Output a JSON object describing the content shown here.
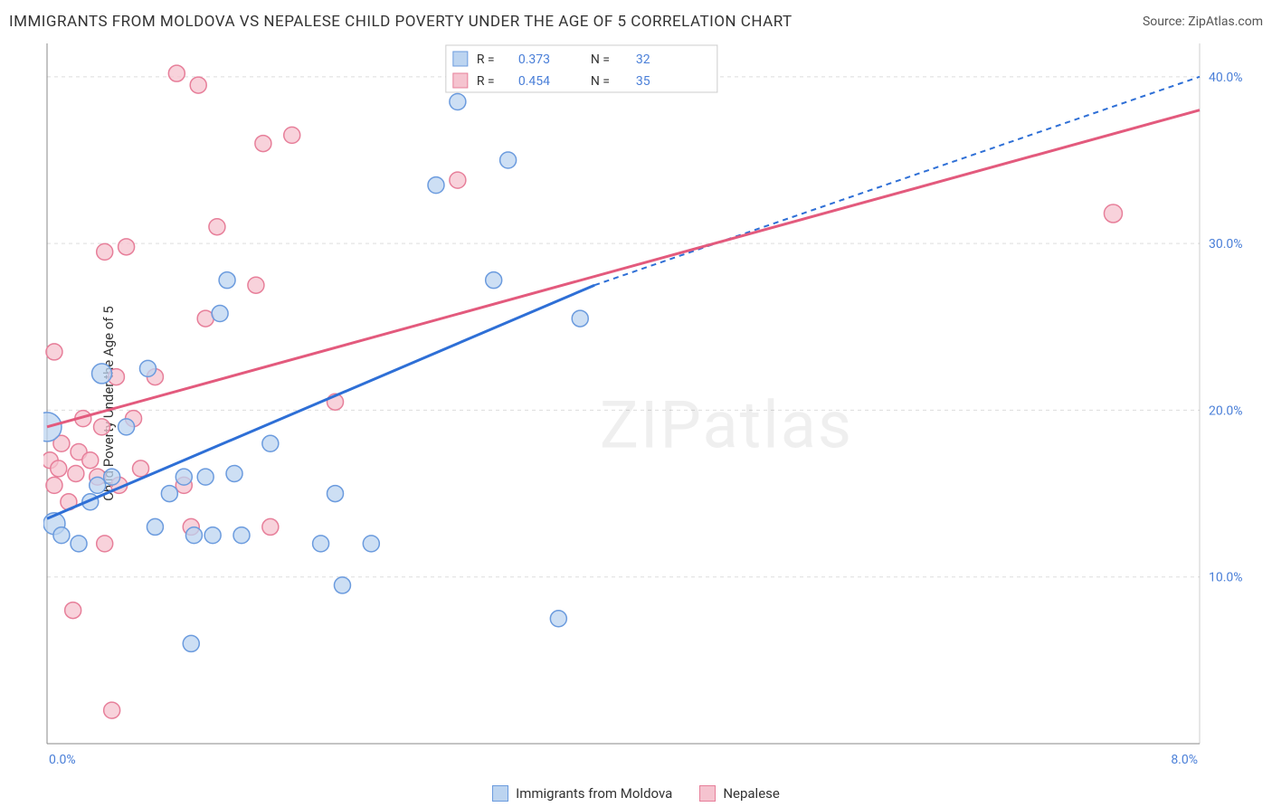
{
  "title": "IMMIGRANTS FROM MOLDOVA VS NEPALESE CHILD POVERTY UNDER THE AGE OF 5 CORRELATION CHART",
  "source_label": "Source: ZipAtlas.com",
  "ylabel": "Child Poverty Under the Age of 5",
  "watermark": "ZIPatlas",
  "chart": {
    "type": "scatter",
    "xlim": [
      0.0,
      8.0
    ],
    "ylim": [
      0.0,
      42.0
    ],
    "x_ticks": [
      0.0,
      8.0
    ],
    "x_tick_labels": [
      "0.0%",
      "8.0%"
    ],
    "y_ticks": [
      10.0,
      20.0,
      30.0,
      40.0
    ],
    "y_tick_labels": [
      "10.0%",
      "20.0%",
      "30.0%",
      "40.0%"
    ],
    "grid_color": "#dddddd",
    "axis_color": "#888888",
    "background_color": "#ffffff",
    "tick_label_color": "#4a7fd8",
    "tick_fontsize": 14
  },
  "series": [
    {
      "name": "Immigrants from Moldova",
      "fill": "#bcd4f0",
      "stroke": "#6b9bde",
      "opacity": 0.75,
      "r_value": "0.373",
      "n_value": "32",
      "trend": {
        "solid": {
          "x1": 0.0,
          "y1": 13.5,
          "x2": 3.8,
          "y2": 27.5
        },
        "dashed": {
          "x1": 3.8,
          "y1": 27.5,
          "x2": 8.0,
          "y2": 40.0
        },
        "color": "#2e6fd6"
      },
      "points": [
        {
          "x": 0.0,
          "y": 19.0,
          "r": 16
        },
        {
          "x": 0.05,
          "y": 13.2,
          "r": 12
        },
        {
          "x": 0.1,
          "y": 12.5,
          "r": 9
        },
        {
          "x": 0.22,
          "y": 12.0,
          "r": 9
        },
        {
          "x": 0.3,
          "y": 14.5,
          "r": 9
        },
        {
          "x": 0.35,
          "y": 15.5,
          "r": 9
        },
        {
          "x": 0.38,
          "y": 22.2,
          "r": 11
        },
        {
          "x": 0.45,
          "y": 16.0,
          "r": 9
        },
        {
          "x": 0.55,
          "y": 19.0,
          "r": 9
        },
        {
          "x": 0.7,
          "y": 22.5,
          "r": 9
        },
        {
          "x": 0.75,
          "y": 13.0,
          "r": 9
        },
        {
          "x": 0.85,
          "y": 15.0,
          "r": 9
        },
        {
          "x": 0.95,
          "y": 16.0,
          "r": 9
        },
        {
          "x": 1.0,
          "y": 6.0,
          "r": 9
        },
        {
          "x": 1.02,
          "y": 12.5,
          "r": 9
        },
        {
          "x": 1.1,
          "y": 16.0,
          "r": 9
        },
        {
          "x": 1.15,
          "y": 12.5,
          "r": 9
        },
        {
          "x": 1.2,
          "y": 25.8,
          "r": 9
        },
        {
          "x": 1.25,
          "y": 27.8,
          "r": 9
        },
        {
          "x": 1.3,
          "y": 16.2,
          "r": 9
        },
        {
          "x": 1.35,
          "y": 12.5,
          "r": 9
        },
        {
          "x": 1.55,
          "y": 18.0,
          "r": 9
        },
        {
          "x": 1.9,
          "y": 12.0,
          "r": 9
        },
        {
          "x": 2.0,
          "y": 15.0,
          "r": 9
        },
        {
          "x": 2.05,
          "y": 9.5,
          "r": 9
        },
        {
          "x": 2.25,
          "y": 12.0,
          "r": 9
        },
        {
          "x": 2.7,
          "y": 33.5,
          "r": 9
        },
        {
          "x": 2.85,
          "y": 38.5,
          "r": 9
        },
        {
          "x": 3.1,
          "y": 27.8,
          "r": 9
        },
        {
          "x": 3.2,
          "y": 35.0,
          "r": 9
        },
        {
          "x": 3.55,
          "y": 7.5,
          "r": 9
        },
        {
          "x": 3.7,
          "y": 25.5,
          "r": 9
        }
      ]
    },
    {
      "name": "Nepalese",
      "fill": "#f5c3cf",
      "stroke": "#e77f9a",
      "opacity": 0.75,
      "r_value": "0.454",
      "n_value": "35",
      "trend": {
        "solid": {
          "x1": 0.0,
          "y1": 19.0,
          "x2": 8.0,
          "y2": 38.0
        },
        "dashed": null,
        "color": "#e35a7d"
      },
      "points": [
        {
          "x": 0.02,
          "y": 17.0,
          "r": 9
        },
        {
          "x": 0.05,
          "y": 15.5,
          "r": 9
        },
        {
          "x": 0.05,
          "y": 23.5,
          "r": 9
        },
        {
          "x": 0.08,
          "y": 16.5,
          "r": 9
        },
        {
          "x": 0.1,
          "y": 18.0,
          "r": 9
        },
        {
          "x": 0.15,
          "y": 14.5,
          "r": 9
        },
        {
          "x": 0.18,
          "y": 8.0,
          "r": 9
        },
        {
          "x": 0.2,
          "y": 16.2,
          "r": 9
        },
        {
          "x": 0.22,
          "y": 17.5,
          "r": 9
        },
        {
          "x": 0.25,
          "y": 19.5,
          "r": 9
        },
        {
          "x": 0.3,
          "y": 17.0,
          "r": 9
        },
        {
          "x": 0.35,
          "y": 16.0,
          "r": 9
        },
        {
          "x": 0.38,
          "y": 19.0,
          "r": 9
        },
        {
          "x": 0.4,
          "y": 29.5,
          "r": 9
        },
        {
          "x": 0.4,
          "y": 12.0,
          "r": 9
        },
        {
          "x": 0.45,
          "y": 2.0,
          "r": 9
        },
        {
          "x": 0.48,
          "y": 22.0,
          "r": 9
        },
        {
          "x": 0.5,
          "y": 15.5,
          "r": 9
        },
        {
          "x": 0.55,
          "y": 29.8,
          "r": 9
        },
        {
          "x": 0.6,
          "y": 19.5,
          "r": 9
        },
        {
          "x": 0.65,
          "y": 16.5,
          "r": 9
        },
        {
          "x": 0.75,
          "y": 22.0,
          "r": 9
        },
        {
          "x": 0.9,
          "y": 40.2,
          "r": 9
        },
        {
          "x": 0.95,
          "y": 15.5,
          "r": 9
        },
        {
          "x": 1.0,
          "y": 13.0,
          "r": 9
        },
        {
          "x": 1.05,
          "y": 39.5,
          "r": 9
        },
        {
          "x": 1.1,
          "y": 25.5,
          "r": 9
        },
        {
          "x": 1.18,
          "y": 31.0,
          "r": 9
        },
        {
          "x": 1.45,
          "y": 27.5,
          "r": 9
        },
        {
          "x": 1.5,
          "y": 36.0,
          "r": 9
        },
        {
          "x": 1.55,
          "y": 13.0,
          "r": 9
        },
        {
          "x": 1.7,
          "y": 36.5,
          "r": 9
        },
        {
          "x": 2.0,
          "y": 20.5,
          "r": 9
        },
        {
          "x": 2.85,
          "y": 33.8,
          "r": 9
        },
        {
          "x": 7.4,
          "y": 31.8,
          "r": 10
        }
      ]
    }
  ],
  "legend_top": {
    "r_label": "R  =",
    "n_label": "N  =",
    "value_color": "#4a7fd8",
    "label_color": "#333333"
  },
  "legend_bottom": {
    "items": [
      "Immigrants from Moldova",
      "Nepalese"
    ]
  }
}
